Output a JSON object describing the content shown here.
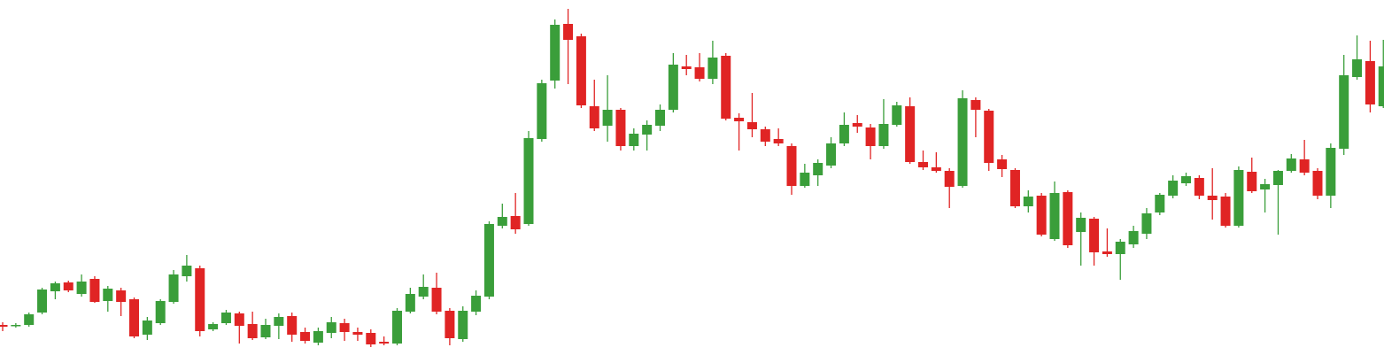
{
  "chart_data": {
    "type": "candlestick",
    "ylim": [
      0,
      410
    ],
    "up_color": "#3a9e3a",
    "down_color": "#e02424",
    "open": [
      43,
      42,
      43,
      57,
      81,
      91,
      78,
      95,
      70,
      82,
      72,
      32,
      45,
      69,
      98,
      107,
      38,
      45,
      56,
      44,
      29,
      42,
      53,
      35,
      23,
      34,
      45,
      35,
      34,
      24,
      22,
      58,
      75,
      85,
      59,
      27,
      58,
      75,
      155,
      166,
      157,
      253,
      319,
      383,
      369,
      290,
      268,
      286,
      245,
      258,
      268,
      286,
      335,
      334,
      321,
      347,
      277,
      272,
      264,
      253,
      245,
      200,
      212,
      223,
      248,
      271,
      266,
      245,
      269,
      290,
      227,
      221,
      217,
      200,
      297,
      285,
      230,
      218,
      177,
      189,
      140,
      193,
      148,
      163,
      126,
      123,
      134,
      146,
      170,
      189,
      203,
      209,
      189,
      188,
      155,
      216,
      196,
      201,
      217,
      230,
      217,
      189,
      242,
      323,
      341,
      290
    ],
    "high": [
      46,
      45,
      57,
      85,
      92,
      93,
      100,
      98,
      87,
      85,
      74,
      52,
      72,
      105,
      122,
      110,
      46,
      60,
      58,
      58,
      50,
      56,
      57,
      40,
      40,
      52,
      50,
      40,
      38,
      30,
      62,
      85,
      100,
      102,
      62,
      64,
      82,
      160,
      180,
      192,
      262,
      320,
      388,
      400,
      372,
      320,
      325,
      288,
      265,
      274,
      292,
      350,
      348,
      350,
      364,
      350,
      282,
      305,
      267,
      265,
      248,
      225,
      230,
      255,
      283,
      280,
      270,
      298,
      295,
      300,
      240,
      238,
      220,
      308,
      300,
      287,
      235,
      220,
      195,
      192,
      205,
      195,
      170,
      165,
      152,
      140,
      155,
      175,
      192,
      212,
      215,
      212,
      220,
      192,
      222,
      232,
      208,
      218,
      236,
      252,
      220,
      248,
      348,
      370,
      364,
      365
    ],
    "low": [
      36,
      40,
      41,
      55,
      72,
      80,
      75,
      68,
      58,
      53,
      28,
      26,
      43,
      67,
      92,
      30,
      36,
      43,
      22,
      26,
      27,
      27,
      24,
      22,
      20,
      28,
      25,
      25,
      18,
      20,
      20,
      56,
      72,
      55,
      20,
      24,
      54,
      72,
      152,
      146,
      155,
      250,
      310,
      315,
      288,
      262,
      250,
      240,
      240,
      240,
      262,
      283,
      325,
      318,
      315,
      274,
      240,
      255,
      245,
      245,
      190,
      198,
      200,
      220,
      245,
      260,
      230,
      242,
      267,
      225,
      218,
      215,
      175,
      198,
      255,
      217,
      210,
      175,
      170,
      143,
      138,
      130,
      110,
      110,
      120,
      94,
      130,
      140,
      167,
      186,
      200,
      185,
      162,
      153,
      153,
      192,
      170,
      145,
      215,
      212,
      185,
      175,
      235,
      320,
      283,
      288
    ],
    "close": [
      41,
      43,
      55,
      83,
      90,
      82,
      92,
      69,
      84,
      69,
      30,
      48,
      70,
      100,
      110,
      36,
      44,
      57,
      42,
      28,
      43,
      52,
      32,
      25,
      36,
      46,
      35,
      32,
      21,
      22,
      59,
      78,
      86,
      58,
      28,
      59,
      76,
      157,
      165,
      151,
      254,
      316,
      382,
      365,
      291,
      265,
      286,
      245,
      259,
      269,
      286,
      337,
      332,
      321,
      345,
      276,
      273,
      264,
      250,
      248,
      200,
      215,
      226,
      248,
      269,
      267,
      245,
      270,
      291,
      227,
      221,
      217,
      199,
      299,
      286,
      226,
      219,
      177,
      188,
      145,
      192,
      133,
      164,
      125,
      123,
      137,
      149,
      169,
      190,
      206,
      211,
      189,
      184,
      155,
      218,
      194,
      202,
      217,
      231,
      215,
      189,
      243,
      325,
      343,
      292,
      335
    ]
  }
}
